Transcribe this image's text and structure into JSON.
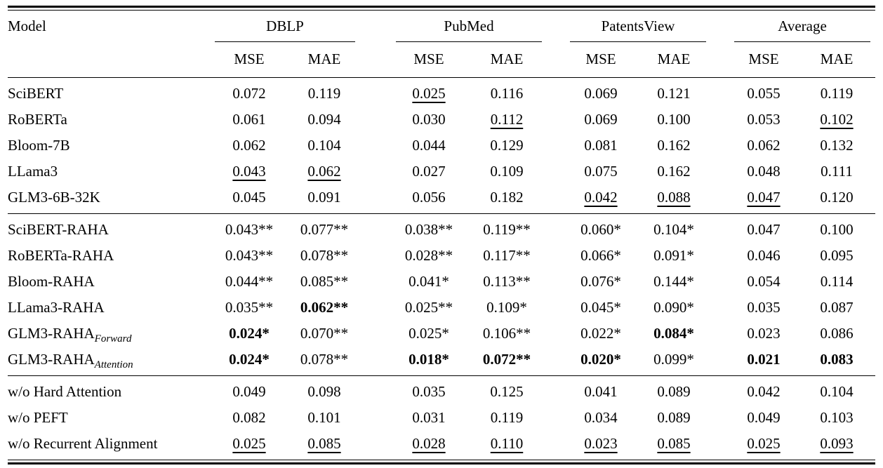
{
  "colors": {
    "text": "#000000",
    "background": "#ffffff",
    "rule": "#000000"
  },
  "table": {
    "header": {
      "model_label": "Model",
      "groups": [
        "DBLP",
        "PubMed",
        "PatentsView",
        "Average"
      ],
      "metrics": [
        "MSE",
        "MAE"
      ]
    },
    "legend": {
      "bold_means": "best result",
      "underline_means": "second-best result"
    },
    "sections": [
      {
        "name": "baselines",
        "rows": [
          {
            "model": "SciBERT",
            "cells": [
              {
                "t": "0.072"
              },
              {
                "t": "0.119"
              },
              {
                "t": "0.025",
                "u": true
              },
              {
                "t": "0.116"
              },
              {
                "t": "0.069"
              },
              {
                "t": "0.121"
              },
              {
                "t": "0.055"
              },
              {
                "t": "0.119"
              }
            ]
          },
          {
            "model": "RoBERTa",
            "cells": [
              {
                "t": "0.061"
              },
              {
                "t": "0.094"
              },
              {
                "t": "0.030"
              },
              {
                "t": "0.112",
                "u": true
              },
              {
                "t": "0.069"
              },
              {
                "t": "0.100"
              },
              {
                "t": "0.053"
              },
              {
                "t": "0.102",
                "u": true
              }
            ]
          },
          {
            "model": "Bloom-7B",
            "cells": [
              {
                "t": "0.062"
              },
              {
                "t": "0.104"
              },
              {
                "t": "0.044"
              },
              {
                "t": "0.129"
              },
              {
                "t": "0.081"
              },
              {
                "t": "0.162"
              },
              {
                "t": "0.062"
              },
              {
                "t": "0.132"
              }
            ]
          },
          {
            "model": "LLama3",
            "cells": [
              {
                "t": "0.043",
                "u": true
              },
              {
                "t": "0.062",
                "u": true
              },
              {
                "t": "0.027"
              },
              {
                "t": "0.109"
              },
              {
                "t": "0.075"
              },
              {
                "t": "0.162"
              },
              {
                "t": "0.048"
              },
              {
                "t": "0.111"
              }
            ]
          },
          {
            "model": "GLM3-6B-32K",
            "cells": [
              {
                "t": "0.045"
              },
              {
                "t": "0.091"
              },
              {
                "t": "0.056"
              },
              {
                "t": "0.182"
              },
              {
                "t": "0.042",
                "u": true
              },
              {
                "t": "0.088",
                "u": true
              },
              {
                "t": "0.047",
                "u": true
              },
              {
                "t": "0.120"
              }
            ]
          }
        ]
      },
      {
        "name": "raha-variants",
        "rows": [
          {
            "model": "SciBERT-RAHA",
            "cells": [
              {
                "t": "0.043**"
              },
              {
                "t": "0.077**"
              },
              {
                "t": "0.038**"
              },
              {
                "t": "0.119**"
              },
              {
                "t": "0.060*"
              },
              {
                "t": "0.104*"
              },
              {
                "t": "0.047"
              },
              {
                "t": "0.100"
              }
            ]
          },
          {
            "model": "RoBERTa-RAHA",
            "cells": [
              {
                "t": "0.043**"
              },
              {
                "t": "0.078**"
              },
              {
                "t": "0.028**"
              },
              {
                "t": "0.117**"
              },
              {
                "t": "0.066*"
              },
              {
                "t": "0.091*"
              },
              {
                "t": "0.046"
              },
              {
                "t": "0.095"
              }
            ]
          },
          {
            "model": "Bloom-RAHA",
            "cells": [
              {
                "t": "0.044**"
              },
              {
                "t": "0.085**"
              },
              {
                "t": "0.041*"
              },
              {
                "t": "0.113**"
              },
              {
                "t": "0.076*"
              },
              {
                "t": "0.144*"
              },
              {
                "t": "0.054"
              },
              {
                "t": "0.114"
              }
            ]
          },
          {
            "model": "LLama3-RAHA",
            "cells": [
              {
                "t": "0.035**"
              },
              {
                "t": "0.062**",
                "b": true
              },
              {
                "t": "0.025**"
              },
              {
                "t": "0.109*"
              },
              {
                "t": "0.045*"
              },
              {
                "t": "0.090*"
              },
              {
                "t": "0.035"
              },
              {
                "t": "0.087"
              }
            ]
          },
          {
            "model": "GLM3-RAHA",
            "sub": "Forward",
            "cells": [
              {
                "t": "0.024*",
                "b": true
              },
              {
                "t": "0.070**"
              },
              {
                "t": "0.025*"
              },
              {
                "t": "0.106**"
              },
              {
                "t": "0.022*"
              },
              {
                "t": "0.084*",
                "b": true
              },
              {
                "t": "0.023"
              },
              {
                "t": "0.086"
              }
            ]
          },
          {
            "model": "GLM3-RAHA",
            "sub": "Attention",
            "cells": [
              {
                "t": "0.024*",
                "b": true
              },
              {
                "t": "0.078**"
              },
              {
                "t": "0.018*",
                "b": true
              },
              {
                "t": "0.072**",
                "b": true
              },
              {
                "t": "0.020*",
                "b": true
              },
              {
                "t": "0.099*"
              },
              {
                "t": "0.021",
                "b": true
              },
              {
                "t": "0.083",
                "b": true
              }
            ]
          }
        ]
      },
      {
        "name": "ablations",
        "rows": [
          {
            "model": "w/o Hard Attention",
            "cells": [
              {
                "t": "0.049"
              },
              {
                "t": "0.098"
              },
              {
                "t": "0.035"
              },
              {
                "t": "0.125"
              },
              {
                "t": "0.041"
              },
              {
                "t": "0.089"
              },
              {
                "t": "0.042"
              },
              {
                "t": "0.104"
              }
            ]
          },
          {
            "model": "w/o PEFT",
            "cells": [
              {
                "t": "0.082"
              },
              {
                "t": "0.101"
              },
              {
                "t": "0.031"
              },
              {
                "t": "0.119"
              },
              {
                "t": "0.034"
              },
              {
                "t": "0.089"
              },
              {
                "t": "0.049"
              },
              {
                "t": "0.103"
              }
            ]
          },
          {
            "model": "w/o Recurrent Alignment",
            "cells": [
              {
                "t": "0.025",
                "u": true
              },
              {
                "t": "0.085",
                "u": true
              },
              {
                "t": "0.028",
                "u": true
              },
              {
                "t": "0.110",
                "u": true
              },
              {
                "t": "0.023",
                "u": true
              },
              {
                "t": "0.085",
                "u": true
              },
              {
                "t": "0.025",
                "u": true
              },
              {
                "t": "0.093",
                "u": true
              }
            ]
          }
        ]
      }
    ]
  }
}
